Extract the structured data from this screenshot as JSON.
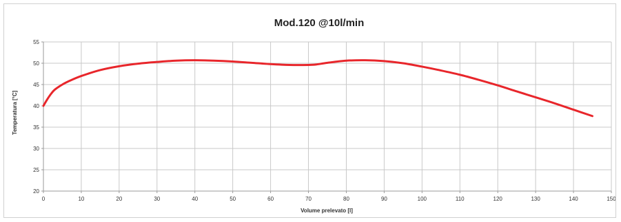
{
  "chart_data": {
    "type": "line",
    "title": "Mod.120 @10l/min",
    "xlabel": "Volume prelevato [l]",
    "ylabel": "Temperatura [°C]",
    "xlim": [
      0,
      150
    ],
    "ylim": [
      20,
      55
    ],
    "xticks": [
      0,
      10,
      20,
      30,
      40,
      50,
      60,
      70,
      80,
      90,
      100,
      110,
      120,
      130,
      140,
      150
    ],
    "yticks": [
      20,
      25,
      30,
      35,
      40,
      45,
      50,
      55
    ],
    "grid": true,
    "legend": "none",
    "colors": {
      "series": "#e8262b",
      "grid": "#c8c8c8",
      "axis": "#9a9a9a",
      "text": "#333333"
    },
    "series": [
      {
        "x": [
          0,
          1,
          2,
          3,
          5,
          7,
          10,
          15,
          20,
          25,
          30,
          35,
          40,
          45,
          50,
          55,
          60,
          65,
          70,
          72,
          75,
          80,
          85,
          90,
          95,
          100,
          105,
          110,
          115,
          120,
          125,
          130,
          135,
          140,
          145
        ],
        "values": [
          40.0,
          41.5,
          42.8,
          43.8,
          45.0,
          45.9,
          47.0,
          48.4,
          49.3,
          49.9,
          50.3,
          50.6,
          50.7,
          50.6,
          50.4,
          50.1,
          49.8,
          49.6,
          49.6,
          49.7,
          50.1,
          50.6,
          50.7,
          50.5,
          50.0,
          49.2,
          48.3,
          47.3,
          46.1,
          44.8,
          43.4,
          42.0,
          40.6,
          39.1,
          37.6
        ]
      }
    ]
  }
}
